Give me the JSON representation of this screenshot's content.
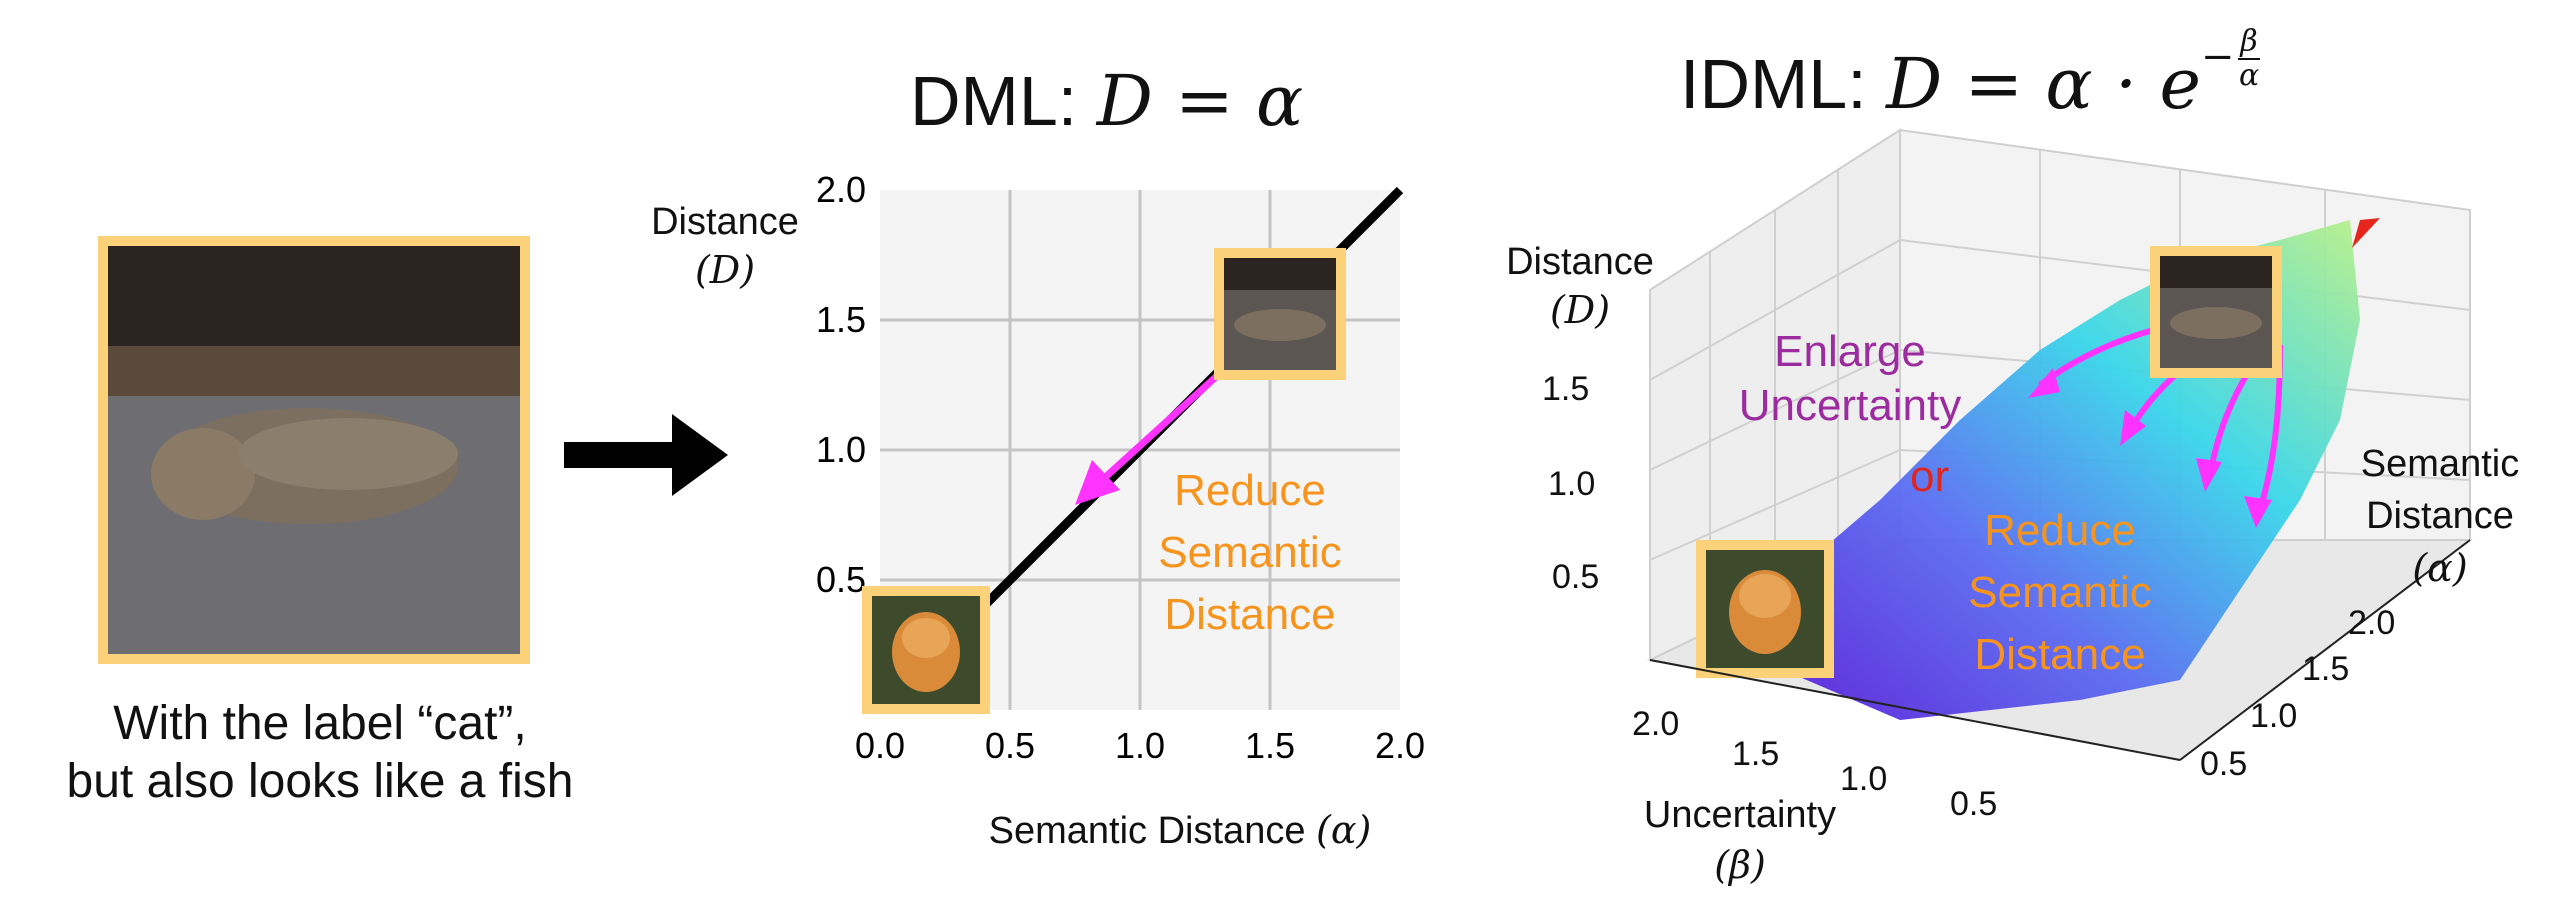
{
  "left": {
    "caption_line1": "With the label “cat”,",
    "caption_line2": "but also looks like a fish"
  },
  "dml": {
    "title_prefix": "DML:",
    "formula": "D = α",
    "ylabel_line1": "Distance",
    "ylabel_symbol": "(D)",
    "xlabel_text": "Semantic Distance",
    "xlabel_symbol": "(α)",
    "xticks": [
      "0.0",
      "0.5",
      "1.0",
      "1.5",
      "2.0"
    ],
    "yticks": [
      "0.5",
      "1.0",
      "1.5",
      "2.0"
    ],
    "annotation": [
      "Reduce",
      "Semantic",
      "Distance"
    ]
  },
  "idml": {
    "title_prefix": "IDML:",
    "formula_main": "D = α · e",
    "formula_exp": "−",
    "formula_num": "β",
    "formula_den": "α",
    "zlabel_line1": "Distance",
    "zlabel_symbol": "(D)",
    "zticks": [
      "1.5",
      "1.0",
      "0.5"
    ],
    "alpha_label_line1": "Semantic",
    "alpha_label_line2": "Distance",
    "alpha_symbol": "(α)",
    "alpha_ticks": [
      "2.0",
      "1.5",
      "1.0",
      "0.5"
    ],
    "beta_label": "Uncertainty",
    "beta_symbol": "(β)",
    "beta_ticks": [
      "2.0",
      "1.5",
      "1.0",
      "0.5"
    ],
    "annotation_uncertainty": [
      "Enlarge",
      "Uncertainty"
    ],
    "annotation_or": "or",
    "annotation_semantic": [
      "Reduce",
      "Semantic",
      "Distance"
    ]
  },
  "colors": {
    "frame": "#fbd27a",
    "arrow_magenta": "#ff33ff",
    "orange_text": "#f7941d",
    "purple_text": "#9b2b9e",
    "red_text": "#e0261c",
    "grid_bg": "#f4f4f4",
    "grid_line": "#c4c4c4"
  },
  "chart_data": [
    {
      "type": "line",
      "title": "DML: D = α",
      "xlabel": "Semantic Distance (α)",
      "ylabel": "Distance (D)",
      "x": [
        0.0,
        0.5,
        1.0,
        1.5,
        2.0
      ],
      "y": [
        0.0,
        0.5,
        1.0,
        1.5,
        2.0
      ],
      "xlim": [
        0.0,
        2.0
      ],
      "ylim": [
        0.0,
        2.0
      ],
      "grid": true
    },
    {
      "type": "surface",
      "title": "IDML: D = α · e^(−β/α)",
      "xlabel": "Uncertainty (β)",
      "ylabel": "Semantic Distance (α)",
      "zlabel": "Distance (D)",
      "beta_range": [
        0.0,
        2.0
      ],
      "alpha_range": [
        0.0,
        2.0
      ]
    }
  ]
}
